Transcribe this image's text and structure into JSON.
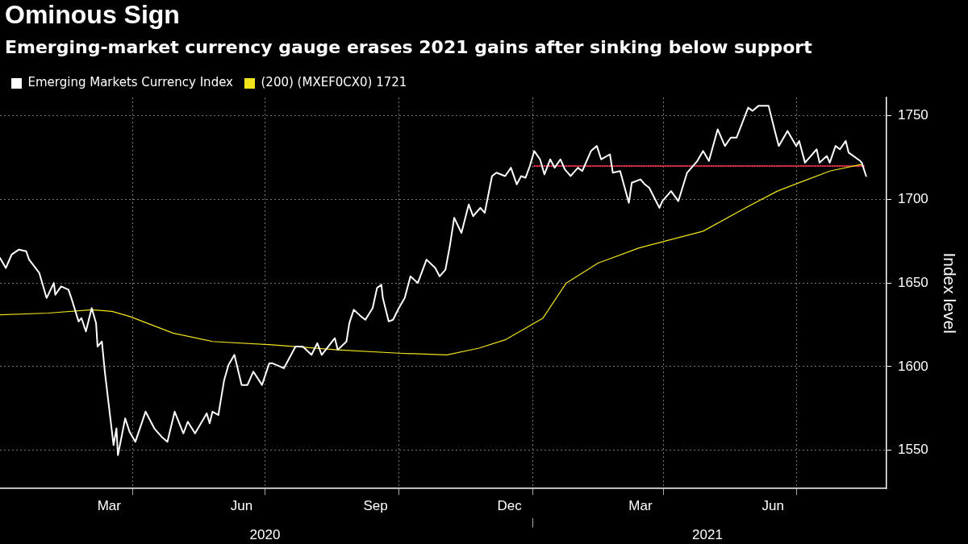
{
  "chart_data": {
    "type": "line",
    "title": "Ominous Sign",
    "subtitle": "Emerging-market currency gauge erases 2021 gains after sinking below support",
    "ylabel": "Index level",
    "legend": "top left",
    "grid": true,
    "xlim": [
      "2020-01-01",
      "2021-09-01"
    ],
    "xticks": [
      {
        "value": "2020-03-16",
        "label": "Mar"
      },
      {
        "value": "2020-04-01",
        "label": null
      },
      {
        "value": "2020-06-15",
        "label": "Jun"
      },
      {
        "value": "2020-07-01",
        "label": null
      },
      {
        "value": "2020-09-15",
        "label": "Sep"
      },
      {
        "value": "2020-10-01",
        "label": null
      },
      {
        "value": "2020-12-16",
        "label": "Dec"
      },
      {
        "value": "2021-01-01",
        "label": null
      },
      {
        "value": "2021-03-16",
        "label": "Mar"
      },
      {
        "value": "2021-04-01",
        "label": null
      },
      {
        "value": "2021-06-15",
        "label": "Jun"
      },
      {
        "value": "2021-07-01",
        "label": null
      }
    ],
    "x2lim": [
      "2020-01-01",
      "2021-09-01"
    ],
    "x2ticks": [
      {
        "value": "2020-07-01",
        "label": "2020"
      },
      {
        "value": "2021-01-01",
        "label": null
      },
      {
        "value": "2021-05-01",
        "label": "2021"
      }
    ],
    "ylim": [
      1527,
      1761
    ],
    "yticks": [
      1550,
      1600,
      1650,
      1700,
      1750
    ],
    "series": [
      {
        "name": "Emerging Markets Currency Index",
        "color": "#ffffff",
        "x": [
          "2020-01-01",
          "2020-01-05",
          "2020-01-09",
          "2020-01-14",
          "2020-01-19",
          "2020-01-21",
          "2020-01-28",
          "2020-02-02",
          "2020-02-07",
          "2020-02-08",
          "2020-02-12",
          "2020-02-17",
          "2020-02-19",
          "2020-02-24",
          "2020-02-26",
          "2020-02-29",
          "2020-03-04",
          "2020-03-07",
          "2020-03-08",
          "2020-03-11",
          "2020-03-13",
          "2020-03-19",
          "2020-03-21",
          "2020-03-22",
          "2020-03-27",
          "2020-03-30",
          "2020-04-03",
          "2020-04-10",
          "2020-04-16",
          "2020-04-21",
          "2020-04-25",
          "2020-04-30",
          "2020-05-06",
          "2020-05-09",
          "2020-05-14",
          "2020-05-22",
          "2020-05-24",
          "2020-05-26",
          "2020-05-30",
          "2020-06-03",
          "2020-06-06",
          "2020-06-10",
          "2020-06-15",
          "2020-06-19",
          "2020-06-23",
          "2020-06-29",
          "2020-07-04",
          "2020-07-06",
          "2020-07-14",
          "2020-07-22",
          "2020-07-27",
          "2020-08-02",
          "2020-08-06",
          "2020-08-09",
          "2020-08-18",
          "2020-08-20",
          "2020-08-26",
          "2020-08-28",
          "2020-08-31",
          "2020-09-05",
          "2020-09-08",
          "2020-09-13",
          "2020-09-16",
          "2020-09-19",
          "2020-09-20",
          "2020-09-24",
          "2020-09-27",
          "2020-10-01",
          "2020-10-05",
          "2020-10-09",
          "2020-10-14",
          "2020-10-20",
          "2020-10-26",
          "2020-10-29",
          "2020-11-02",
          "2020-11-05",
          "2020-11-08",
          "2020-11-13",
          "2020-11-18",
          "2020-11-21",
          "2020-11-26",
          "2020-11-29",
          "2020-12-04",
          "2020-12-07",
          "2020-12-13",
          "2020-12-17",
          "2020-12-21",
          "2020-12-24",
          "2020-12-27",
          "2020-12-30",
          "2021-01-02",
          "2021-01-06",
          "2021-01-09",
          "2021-01-13",
          "2021-01-16",
          "2021-01-20",
          "2021-01-23",
          "2021-01-27",
          "2021-02-01",
          "2021-02-04",
          "2021-02-10",
          "2021-02-14",
          "2021-02-17",
          "2021-02-23",
          "2021-02-25",
          "2021-03-02",
          "2021-03-08",
          "2021-03-10",
          "2021-03-16",
          "2021-03-19",
          "2021-03-22",
          "2021-03-29",
          "2021-03-31",
          "2021-04-06",
          "2021-04-11",
          "2021-04-17",
          "2021-04-24",
          "2021-04-28",
          "2021-05-02",
          "2021-05-08",
          "2021-05-13",
          "2021-05-17",
          "2021-05-21",
          "2021-05-29",
          "2021-06-01",
          "2021-06-05",
          "2021-06-12",
          "2021-06-16",
          "2021-06-19",
          "2021-06-25",
          "2021-07-01",
          "2021-07-03",
          "2021-07-07",
          "2021-07-15",
          "2021-07-17",
          "2021-07-22",
          "2021-07-24",
          "2021-07-28",
          "2021-07-31",
          "2021-08-04",
          "2021-08-06",
          "2021-08-14",
          "2021-08-15",
          "2021-08-18"
        ],
        "values": [
          1665,
          1659,
          1667,
          1670,
          1669,
          1664,
          1656,
          1641,
          1650,
          1643,
          1648,
          1646,
          1641,
          1627,
          1629,
          1621,
          1635,
          1626,
          1612,
          1615,
          1597,
          1553,
          1563,
          1547,
          1569,
          1561,
          1555,
          1573,
          1563,
          1558,
          1555,
          1573,
          1560,
          1567,
          1560,
          1572,
          1566,
          1573,
          1571,
          1592,
          1601,
          1607,
          1589,
          1589,
          1597,
          1589,
          1602,
          1602,
          1599,
          1612,
          1612,
          1607,
          1614,
          1607,
          1617,
          1610,
          1615,
          1626,
          1634,
          1630,
          1628,
          1635,
          1647,
          1649,
          1641,
          1627,
          1628,
          1635,
          1641,
          1654,
          1650,
          1664,
          1659,
          1654,
          1658,
          1672,
          1689,
          1680,
          1697,
          1690,
          1695,
          1692,
          1714,
          1716,
          1714,
          1719,
          1709,
          1714,
          1713,
          1720,
          1729,
          1724,
          1715,
          1724,
          1719,
          1724,
          1718,
          1714,
          1719,
          1717,
          1729,
          1732,
          1724,
          1727,
          1716,
          1717,
          1698,
          1710,
          1712,
          1709,
          1707,
          1695,
          1699,
          1705,
          1699,
          1716,
          1723,
          1729,
          1723,
          1742,
          1732,
          1737,
          1737,
          1755,
          1753,
          1756,
          1756,
          1742,
          1732,
          1741,
          1732,
          1735,
          1722,
          1730,
          1722,
          1726,
          1722,
          1732,
          1730,
          1735,
          1728,
          1723,
          1722,
          1714
        ]
      },
      {
        "name": "(200) (MXEF0CX0) 1721",
        "color": "#f2e41c",
        "x": [
          "2020-01-01",
          "2020-02-03",
          "2020-03-04",
          "2020-03-18",
          "2020-03-30",
          "2020-04-29",
          "2020-05-26",
          "2020-07-06",
          "2020-08-20",
          "2020-10-01",
          "2020-11-03",
          "2020-11-25",
          "2020-12-13",
          "2021-01-08",
          "2021-01-24",
          "2021-02-15",
          "2021-03-15",
          "2021-04-28",
          "2021-05-25",
          "2021-06-18",
          "2021-07-06",
          "2021-07-24",
          "2021-08-15"
        ],
        "values": [
          1631,
          1632,
          1634,
          1633,
          1630,
          1620,
          1615,
          1613,
          1610,
          1608,
          1607,
          1611,
          1616,
          1629,
          1650,
          1662,
          1671,
          1681,
          1694,
          1705,
          1711,
          1717,
          1721
        ]
      },
      {
        "color": "#e8324a",
        "line_style": "dotted",
        "x": [
          "2021-01-02",
          "2021-08-17"
        ],
        "values": [
          1720,
          1720
        ]
      }
    ]
  }
}
